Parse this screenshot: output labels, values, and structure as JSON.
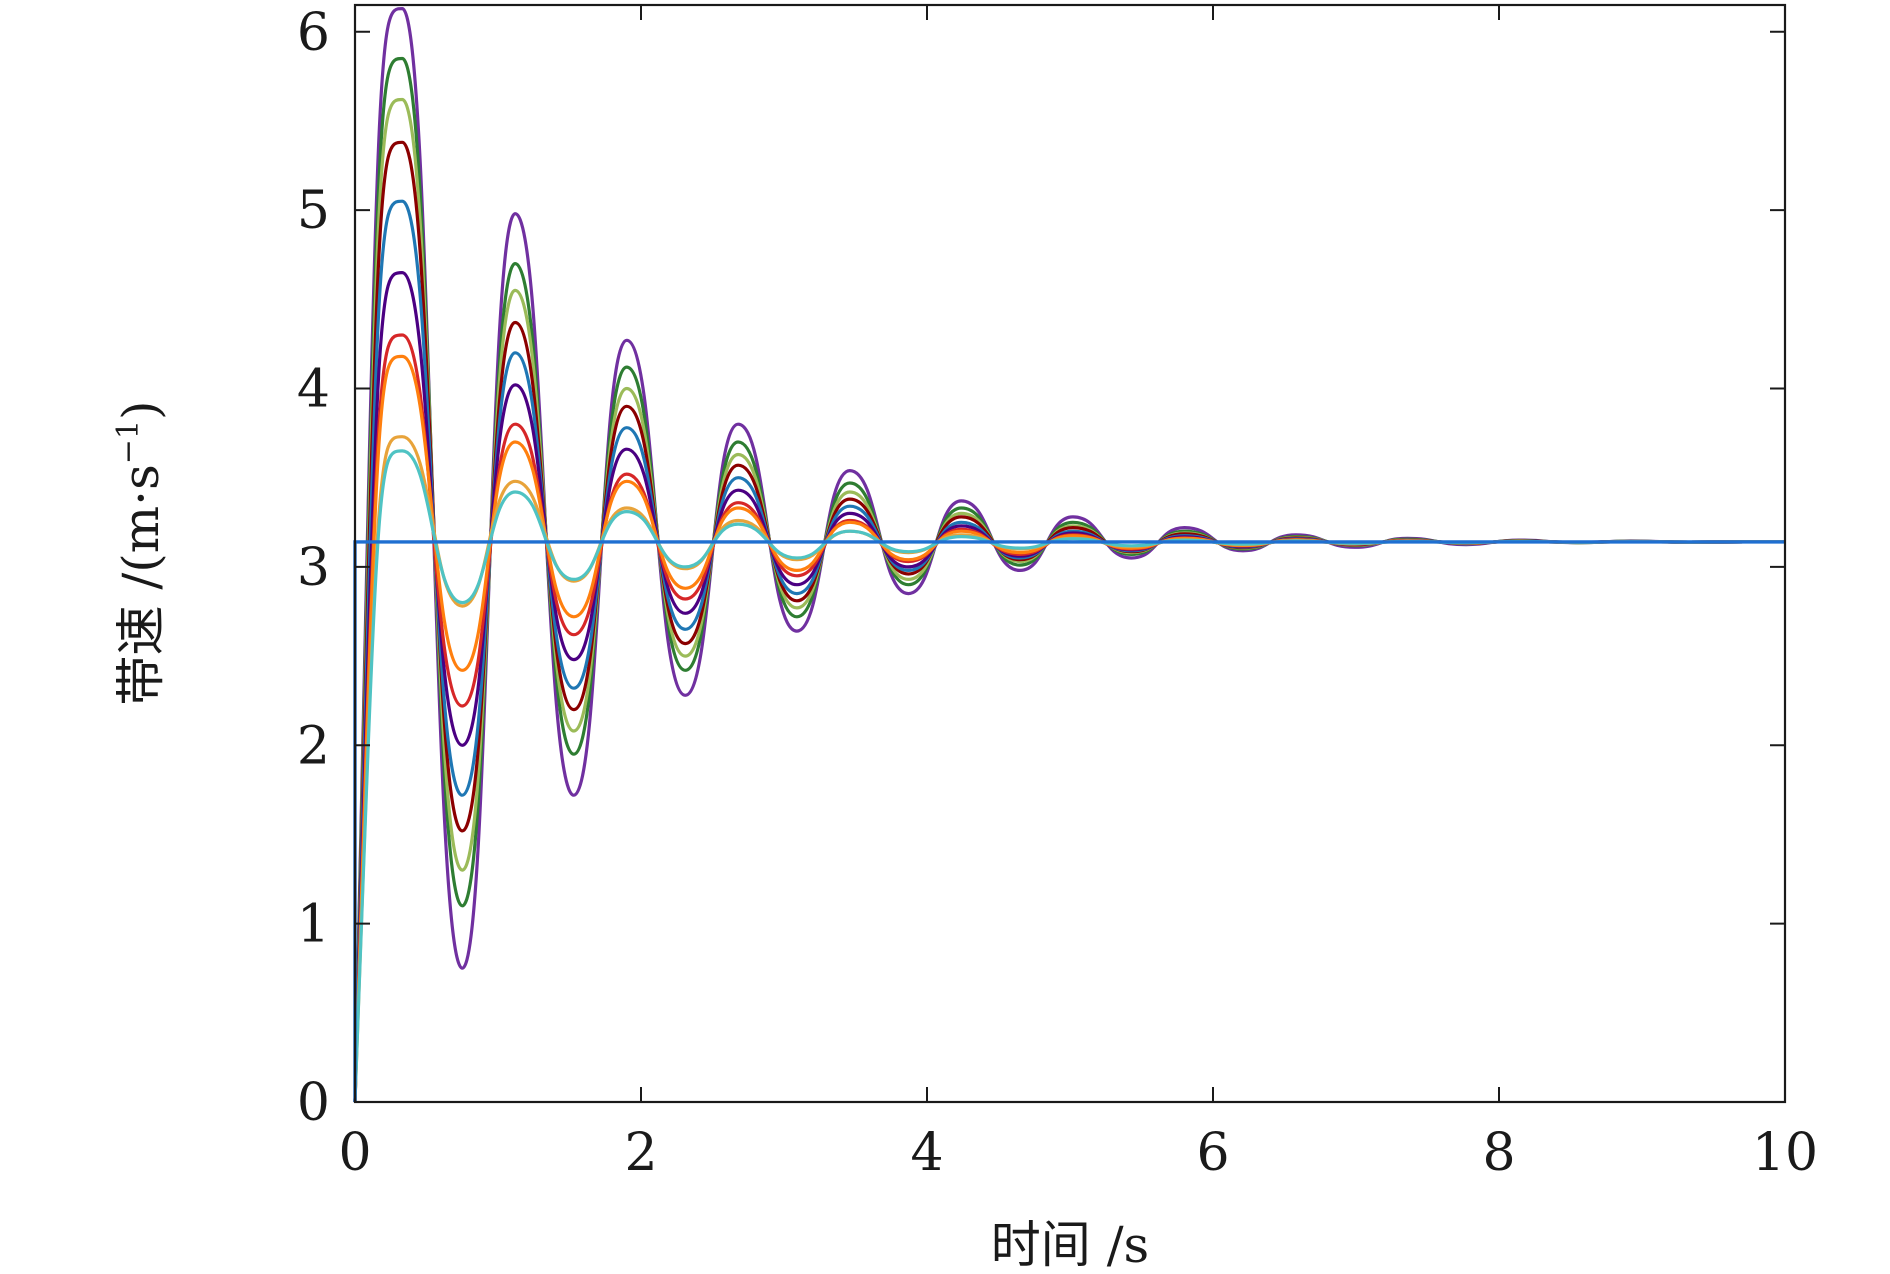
{
  "chart_data": {
    "type": "line",
    "title": "",
    "xlabel": "时间 /s",
    "ylabel": "带速 /(m·s",
    "ylabel_sup": "−1",
    "ylabel_close": ")",
    "xlim": [
      0,
      10
    ],
    "ylim": [
      0,
      6.15
    ],
    "xticks": [
      0,
      2,
      4,
      6,
      8,
      10
    ],
    "yticks": [
      0,
      1,
      2,
      3,
      4,
      5,
      6
    ],
    "grid": false,
    "legend": "none",
    "steady_value": 3.14,
    "colors": [
      "#7030a0",
      "#2e7d32",
      "#9bbb59",
      "#8b0000",
      "#1f77b4",
      "#4b0082",
      "#d62728",
      "#ff7f0e",
      "#e8a33a",
      "#4fc3c3",
      "#70ad47",
      "#c0392b",
      "#76d7c4"
    ],
    "series": [
      {
        "peaks": [
          [
            0.33,
            6.13
          ],
          [
            1.12,
            4.98
          ],
          [
            1.9,
            4.27
          ],
          [
            2.68,
            3.8
          ],
          [
            3.46,
            3.54
          ],
          [
            4.24,
            3.37
          ],
          [
            5.02,
            3.28
          ],
          [
            5.8,
            3.22
          ],
          [
            6.58,
            3.18
          ],
          [
            7.36,
            3.16
          ],
          [
            8.14,
            3.15
          ],
          [
            8.92,
            3.145
          ]
        ],
        "troughs": [
          [
            0.75,
            0.75
          ],
          [
            1.53,
            1.72
          ],
          [
            2.31,
            2.28
          ],
          [
            3.09,
            2.64
          ],
          [
            3.87,
            2.85
          ],
          [
            4.65,
            2.98
          ],
          [
            5.43,
            3.05
          ],
          [
            6.21,
            3.09
          ],
          [
            6.99,
            3.11
          ],
          [
            7.77,
            3.125
          ],
          [
            8.55,
            3.135
          ],
          [
            9.33,
            3.138
          ]
        ]
      },
      {
        "peaks": [
          [
            0.33,
            5.85
          ],
          [
            1.12,
            4.7
          ],
          [
            1.9,
            4.12
          ],
          [
            2.68,
            3.7
          ],
          [
            3.46,
            3.47
          ],
          [
            4.24,
            3.33
          ],
          [
            5.02,
            3.25
          ],
          [
            5.8,
            3.2
          ],
          [
            6.58,
            3.17
          ],
          [
            7.36,
            3.155
          ],
          [
            8.14,
            3.148
          ],
          [
            8.92,
            3.144
          ]
        ],
        "troughs": [
          [
            0.75,
            1.1
          ],
          [
            1.53,
            1.95
          ],
          [
            2.31,
            2.42
          ],
          [
            3.09,
            2.72
          ],
          [
            3.87,
            2.9
          ],
          [
            4.65,
            3.01
          ],
          [
            5.43,
            3.07
          ],
          [
            6.21,
            3.1
          ],
          [
            6.99,
            3.12
          ],
          [
            7.77,
            3.13
          ],
          [
            8.55,
            3.136
          ],
          [
            9.33,
            3.139
          ]
        ]
      },
      {
        "peaks": [
          [
            0.33,
            5.62
          ],
          [
            1.12,
            4.55
          ],
          [
            1.9,
            4.0
          ],
          [
            2.68,
            3.63
          ],
          [
            3.46,
            3.42
          ],
          [
            4.24,
            3.3
          ],
          [
            5.02,
            3.23
          ],
          [
            5.8,
            3.19
          ],
          [
            6.58,
            3.165
          ],
          [
            7.36,
            3.152
          ],
          [
            8.14,
            3.146
          ],
          [
            8.92,
            3.143
          ]
        ],
        "troughs": [
          [
            0.75,
            1.3
          ],
          [
            1.53,
            2.08
          ],
          [
            2.31,
            2.5
          ],
          [
            3.09,
            2.77
          ],
          [
            3.87,
            2.93
          ],
          [
            4.65,
            3.03
          ],
          [
            5.43,
            3.08
          ],
          [
            6.21,
            3.105
          ],
          [
            6.99,
            3.122
          ],
          [
            7.77,
            3.131
          ],
          [
            8.55,
            3.136
          ],
          [
            9.33,
            3.139
          ]
        ]
      },
      {
        "peaks": [
          [
            0.33,
            5.38
          ],
          [
            1.12,
            4.37
          ],
          [
            1.9,
            3.9
          ],
          [
            2.68,
            3.57
          ],
          [
            3.46,
            3.38
          ],
          [
            4.24,
            3.28
          ],
          [
            5.02,
            3.22
          ],
          [
            5.8,
            3.185
          ],
          [
            6.58,
            3.162
          ],
          [
            7.36,
            3.15
          ],
          [
            8.14,
            3.145
          ],
          [
            8.92,
            3.142
          ]
        ],
        "troughs": [
          [
            0.75,
            1.52
          ],
          [
            1.53,
            2.2
          ],
          [
            2.31,
            2.57
          ],
          [
            3.09,
            2.81
          ],
          [
            3.87,
            2.96
          ],
          [
            4.65,
            3.04
          ],
          [
            5.43,
            3.085
          ],
          [
            6.21,
            3.108
          ],
          [
            6.99,
            3.124
          ],
          [
            7.77,
            3.132
          ],
          [
            8.55,
            3.137
          ],
          [
            9.33,
            3.139
          ]
        ]
      },
      {
        "peaks": [
          [
            0.33,
            5.05
          ],
          [
            1.12,
            4.2
          ],
          [
            1.9,
            3.78
          ],
          [
            2.68,
            3.5
          ],
          [
            3.46,
            3.34
          ],
          [
            4.24,
            3.25
          ],
          [
            5.02,
            3.2
          ],
          [
            5.8,
            3.175
          ],
          [
            6.58,
            3.158
          ],
          [
            7.36,
            3.149
          ],
          [
            8.14,
            3.144
          ],
          [
            8.92,
            3.142
          ]
        ],
        "troughs": [
          [
            0.75,
            1.72
          ],
          [
            1.53,
            2.32
          ],
          [
            2.31,
            2.65
          ],
          [
            3.09,
            2.85
          ],
          [
            3.87,
            2.98
          ],
          [
            4.65,
            3.05
          ],
          [
            5.43,
            3.09
          ],
          [
            6.21,
            3.112
          ],
          [
            6.99,
            3.126
          ],
          [
            7.77,
            3.133
          ],
          [
            8.55,
            3.137
          ],
          [
            9.33,
            3.139
          ]
        ]
      },
      {
        "peaks": [
          [
            0.33,
            4.65
          ],
          [
            1.12,
            4.02
          ],
          [
            1.9,
            3.66
          ],
          [
            2.68,
            3.43
          ],
          [
            3.46,
            3.3
          ],
          [
            4.24,
            3.23
          ],
          [
            5.02,
            3.19
          ],
          [
            5.8,
            3.168
          ],
          [
            6.58,
            3.155
          ],
          [
            7.36,
            3.148
          ],
          [
            8.14,
            3.144
          ],
          [
            8.92,
            3.142
          ]
        ],
        "troughs": [
          [
            0.75,
            2.0
          ],
          [
            1.53,
            2.48
          ],
          [
            2.31,
            2.74
          ],
          [
            3.09,
            2.9
          ],
          [
            3.87,
            3.0
          ],
          [
            4.65,
            3.06
          ],
          [
            5.43,
            3.095
          ],
          [
            6.21,
            3.115
          ],
          [
            6.99,
            3.127
          ],
          [
            7.77,
            3.134
          ],
          [
            8.55,
            3.138
          ],
          [
            9.33,
            3.139
          ]
        ]
      },
      {
        "peaks": [
          [
            0.33,
            4.3
          ],
          [
            1.12,
            3.8
          ],
          [
            1.9,
            3.52
          ],
          [
            2.68,
            3.36
          ],
          [
            3.46,
            3.26
          ],
          [
            4.24,
            3.21
          ],
          [
            5.02,
            3.18
          ],
          [
            5.8,
            3.162
          ],
          [
            6.58,
            3.152
          ],
          [
            7.36,
            3.147
          ],
          [
            8.14,
            3.143
          ],
          [
            8.92,
            3.141
          ]
        ],
        "troughs": [
          [
            0.75,
            2.22
          ],
          [
            1.53,
            2.62
          ],
          [
            2.31,
            2.82
          ],
          [
            3.09,
            2.95
          ],
          [
            3.87,
            3.03
          ],
          [
            4.65,
            3.07
          ],
          [
            5.43,
            3.1
          ],
          [
            6.21,
            3.118
          ],
          [
            6.99,
            3.128
          ],
          [
            7.77,
            3.134
          ],
          [
            8.55,
            3.138
          ],
          [
            9.33,
            3.139
          ]
        ]
      },
      {
        "peaks": [
          [
            0.33,
            4.18
          ],
          [
            1.12,
            3.7
          ],
          [
            1.9,
            3.48
          ],
          [
            2.68,
            3.33
          ],
          [
            3.46,
            3.25
          ],
          [
            4.24,
            3.2
          ],
          [
            5.02,
            3.175
          ],
          [
            5.8,
            3.16
          ],
          [
            6.58,
            3.151
          ],
          [
            7.36,
            3.146
          ],
          [
            8.14,
            3.143
          ],
          [
            8.92,
            3.141
          ]
        ],
        "troughs": [
          [
            0.75,
            2.42
          ],
          [
            1.53,
            2.72
          ],
          [
            2.31,
            2.88
          ],
          [
            3.09,
            2.98
          ],
          [
            3.87,
            3.04
          ],
          [
            4.65,
            3.08
          ],
          [
            5.43,
            3.105
          ],
          [
            6.21,
            3.12
          ],
          [
            6.99,
            3.129
          ],
          [
            7.77,
            3.135
          ],
          [
            8.55,
            3.138
          ],
          [
            9.33,
            3.139
          ]
        ]
      },
      {
        "peaks": [
          [
            0.33,
            3.73
          ],
          [
            1.12,
            3.48
          ],
          [
            1.9,
            3.33
          ],
          [
            2.68,
            3.26
          ],
          [
            3.46,
            3.2
          ],
          [
            4.24,
            3.18
          ],
          [
            5.02,
            3.16
          ],
          [
            5.8,
            3.152
          ],
          [
            6.58,
            3.147
          ],
          [
            7.36,
            3.144
          ],
          [
            8.14,
            3.142
          ],
          [
            8.92,
            3.141
          ]
        ],
        "troughs": [
          [
            0.75,
            2.78
          ],
          [
            1.53,
            2.92
          ],
          [
            2.31,
            2.99
          ],
          [
            3.09,
            3.04
          ],
          [
            3.87,
            3.08
          ],
          [
            4.65,
            3.1
          ],
          [
            5.43,
            3.115
          ],
          [
            6.21,
            3.125
          ],
          [
            6.99,
            3.131
          ],
          [
            7.77,
            3.136
          ],
          [
            8.55,
            3.138
          ],
          [
            9.33,
            3.139
          ]
        ]
      },
      {
        "peaks": [
          [
            0.33,
            3.65
          ],
          [
            1.12,
            3.42
          ],
          [
            1.9,
            3.31
          ],
          [
            2.68,
            3.24
          ],
          [
            3.46,
            3.2
          ],
          [
            4.24,
            3.17
          ],
          [
            5.02,
            3.158
          ],
          [
            5.8,
            3.15
          ],
          [
            6.58,
            3.146
          ],
          [
            7.36,
            3.143
          ],
          [
            8.14,
            3.142
          ],
          [
            8.92,
            3.141
          ]
        ],
        "troughs": [
          [
            0.75,
            2.8
          ],
          [
            1.53,
            2.93
          ],
          [
            2.31,
            3.0
          ],
          [
            3.09,
            3.05
          ],
          [
            3.87,
            3.085
          ],
          [
            4.65,
            3.105
          ],
          [
            5.43,
            3.118
          ],
          [
            6.21,
            3.127
          ],
          [
            6.99,
            3.132
          ],
          [
            7.77,
            3.136
          ],
          [
            8.55,
            3.138
          ],
          [
            9.33,
            3.139
          ]
        ]
      }
    ]
  }
}
